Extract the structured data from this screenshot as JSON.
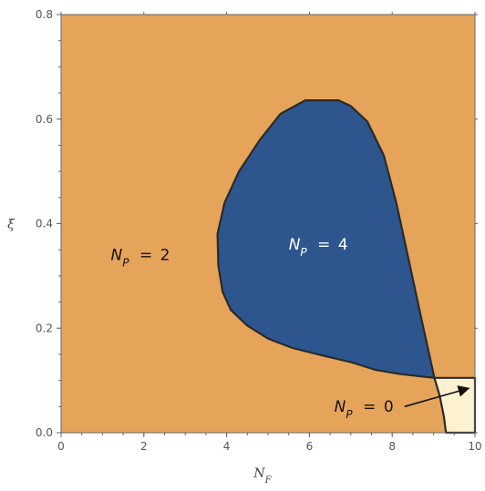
{
  "chart_data": {
    "type": "heatmap",
    "xlabel": "N_F",
    "ylabel": "ξ",
    "xlim": [
      0,
      10
    ],
    "ylim": [
      0,
      0.8
    ],
    "x_ticks": [
      "0",
      "2",
      "4",
      "6",
      "8",
      "10"
    ],
    "y_ticks": [
      "0.0",
      "0.2",
      "0.4",
      "0.6",
      "0.8"
    ],
    "colors": {
      "np2": "#e6a45a",
      "np4": "#2d568f",
      "np0": "#fdf2cf",
      "boundary": "#2a2a2a"
    },
    "regions": [
      {
        "name": "N_P = 2",
        "label_main": "N",
        "label_sub": "P",
        "label_rest": " = 2",
        "label_at": [
          1.2,
          0.33
        ],
        "text_color": "#111111"
      },
      {
        "name": "N_P = 4",
        "label_main": "N",
        "label_sub": "P",
        "label_rest": " = 4",
        "label_at": [
          5.5,
          0.35
        ],
        "text_color": "#ffffff",
        "boundary": [
          [
            9.02,
            0.105
          ],
          [
            8.7,
            0.22
          ],
          [
            8.4,
            0.33
          ],
          [
            8.1,
            0.44
          ],
          [
            7.8,
            0.53
          ],
          [
            7.4,
            0.595
          ],
          [
            7.0,
            0.625
          ],
          [
            6.7,
            0.636
          ],
          [
            5.9,
            0.636
          ],
          [
            5.3,
            0.61
          ],
          [
            4.8,
            0.56
          ],
          [
            4.3,
            0.5
          ],
          [
            3.95,
            0.44
          ],
          [
            3.78,
            0.38
          ],
          [
            3.8,
            0.32
          ],
          [
            3.9,
            0.27
          ],
          [
            4.1,
            0.235
          ],
          [
            4.5,
            0.205
          ],
          [
            5.0,
            0.18
          ],
          [
            5.6,
            0.162
          ],
          [
            6.3,
            0.148
          ],
          [
            7.0,
            0.135
          ],
          [
            7.6,
            0.12
          ],
          [
            8.2,
            0.112
          ]
        ]
      },
      {
        "name": "N_P = 0",
        "label_main": "N",
        "label_sub": "P",
        "label_rest": " = 0",
        "label_at": [
          6.6,
          0.04
        ],
        "text_color": "#111111",
        "arrow_from": [
          8.3,
          0.05
        ],
        "arrow_to": [
          9.85,
          0.085
        ],
        "boundary": [
          [
            9.02,
            0.105
          ],
          [
            10,
            0.105
          ],
          [
            10,
            0
          ],
          [
            9.3,
            0
          ],
          [
            9.25,
            0.03
          ],
          [
            9.15,
            0.07
          ]
        ]
      }
    ]
  }
}
